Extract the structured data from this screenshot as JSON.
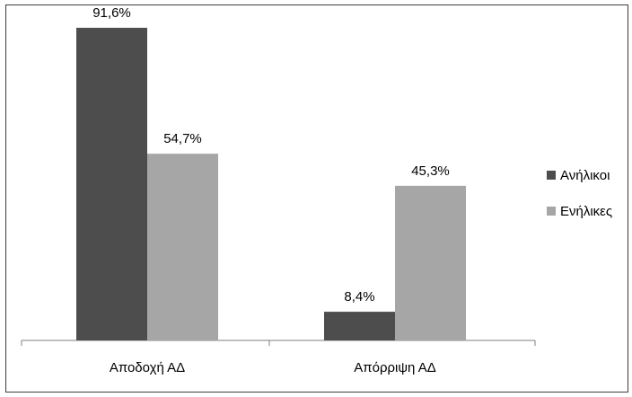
{
  "chart_data": {
    "type": "bar",
    "categories": [
      "Αποδοχή ΑΔ",
      "Απόρριψη ΑΔ"
    ],
    "series": [
      {
        "name": "Ανήλικοι",
        "values": [
          91.6,
          8.4
        ],
        "color": "#4d4d4d"
      },
      {
        "name": "Ενήλικες",
        "values": [
          54.7,
          45.3
        ],
        "color": "#a6a6a6"
      }
    ],
    "data_labels": [
      [
        "91,6%",
        "8,4%"
      ],
      [
        "54,7%",
        "45,3%"
      ]
    ],
    "ylim": [
      0,
      100
    ],
    "legend_position": "right",
    "grid": false
  }
}
